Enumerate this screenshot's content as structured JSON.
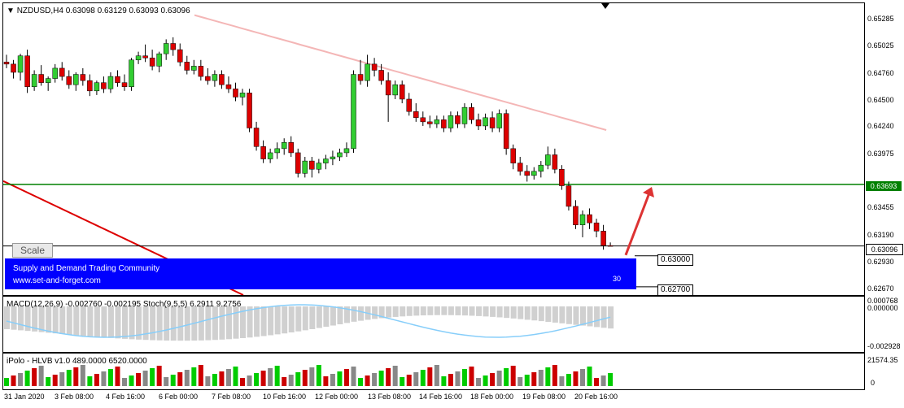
{
  "header": {
    "symbol": "NZDUSD,H4",
    "ohlc": "0.63098 0.63129 0.63093 0.63096"
  },
  "scale_button": "Scale",
  "banner": {
    "line1": "Supply and Demand Trading Community",
    "line2": "www.set-and-forget.com",
    "number": "30",
    "color": "#0000ff"
  },
  "price_axis": {
    "ticks": [
      "0.65285",
      "0.65025",
      "0.64760",
      "0.64500",
      "0.64240",
      "0.63975",
      "0.63455",
      "0.63190",
      "0.62930",
      "0.62670"
    ],
    "current_price": "0.63096",
    "level_price": "0.63693"
  },
  "boxes": {
    "upper": "0.63000",
    "lower": "0.62700"
  },
  "macd": {
    "label": "MACD(12,26,9) -0.002760 -0.002195  Stoch(9,5,5) 6.2911 9.2756",
    "ticks": [
      "0.000768",
      "0.000000",
      "-0.002928"
    ]
  },
  "volume": {
    "label": "iPolo - HLVB v1.0 489.0000 6520.0000",
    "ticks": [
      "21574.35",
      "0"
    ]
  },
  "time_axis": [
    "31 Jan 2020",
    "3 Feb 08:00",
    "4 Feb 16:00",
    "6 Feb 00:00",
    "7 Feb 08:00",
    "10 Feb 16:00",
    "12 Feb 00:00",
    "13 Feb 08:00",
    "14 Feb 16:00",
    "18 Feb 00:00",
    "19 Feb 08:00",
    "20 Feb 16:00"
  ],
  "colors": {
    "bull": "#32cd32",
    "bear": "#dd0000",
    "ma": "#f4b6b6",
    "trend": "#dd0000",
    "level": "#008000",
    "arrow": "#dd3333",
    "macd_hist": "#d0d0d0",
    "stoch": "#87cefa"
  },
  "chart_data": {
    "type": "candlestick",
    "y_range": [
      0.6262,
      0.6545
    ],
    "level": 0.63693,
    "candles": [
      [
        0.6488,
        0.6495,
        0.6482,
        0.6486
      ],
      [
        0.6486,
        0.649,
        0.6472,
        0.6478
      ],
      [
        0.6478,
        0.6496,
        0.647,
        0.6494
      ],
      [
        0.6494,
        0.65,
        0.6458,
        0.6464
      ],
      [
        0.6464,
        0.648,
        0.646,
        0.6476
      ],
      [
        0.6476,
        0.6485,
        0.6465,
        0.6468
      ],
      [
        0.6468,
        0.6474,
        0.646,
        0.6472
      ],
      [
        0.6472,
        0.6486,
        0.6468,
        0.6482
      ],
      [
        0.6482,
        0.6488,
        0.647,
        0.6474
      ],
      [
        0.6474,
        0.648,
        0.6462,
        0.6466
      ],
      [
        0.6466,
        0.6478,
        0.646,
        0.6476
      ],
      [
        0.6476,
        0.6482,
        0.6465,
        0.647
      ],
      [
        0.647,
        0.6476,
        0.6455,
        0.646
      ],
      [
        0.646,
        0.647,
        0.6456,
        0.6468
      ],
      [
        0.6468,
        0.6474,
        0.6458,
        0.6462
      ],
      [
        0.6462,
        0.6478,
        0.6458,
        0.6474
      ],
      [
        0.6474,
        0.648,
        0.6464,
        0.6468
      ],
      [
        0.6468,
        0.6476,
        0.646,
        0.6464
      ],
      [
        0.6464,
        0.6492,
        0.646,
        0.649
      ],
      [
        0.649,
        0.6498,
        0.6486,
        0.6494
      ],
      [
        0.6494,
        0.6505,
        0.6488,
        0.6492
      ],
      [
        0.6492,
        0.65,
        0.648,
        0.6484
      ],
      [
        0.6484,
        0.6498,
        0.6478,
        0.6496
      ],
      [
        0.6496,
        0.651,
        0.649,
        0.6506
      ],
      [
        0.6506,
        0.6512,
        0.6494,
        0.65
      ],
      [
        0.65,
        0.6506,
        0.6484,
        0.6488
      ],
      [
        0.6488,
        0.6494,
        0.6476,
        0.648
      ],
      [
        0.648,
        0.649,
        0.6476,
        0.6484
      ],
      [
        0.6484,
        0.649,
        0.647,
        0.6474
      ],
      [
        0.6474,
        0.6482,
        0.6466,
        0.647
      ],
      [
        0.647,
        0.648,
        0.6464,
        0.6476
      ],
      [
        0.6476,
        0.648,
        0.6462,
        0.6466
      ],
      [
        0.6466,
        0.6474,
        0.6458,
        0.6462
      ],
      [
        0.6462,
        0.6468,
        0.645,
        0.6454
      ],
      [
        0.6454,
        0.6462,
        0.6446,
        0.6458
      ],
      [
        0.6458,
        0.6462,
        0.642,
        0.6424
      ],
      [
        0.6424,
        0.643,
        0.6402,
        0.6406
      ],
      [
        0.6406,
        0.6412,
        0.639,
        0.6394
      ],
      [
        0.6394,
        0.6404,
        0.639,
        0.64
      ],
      [
        0.64,
        0.641,
        0.6394,
        0.6404
      ],
      [
        0.6404,
        0.6414,
        0.6398,
        0.641
      ],
      [
        0.641,
        0.6416,
        0.6396,
        0.64
      ],
      [
        0.64,
        0.6404,
        0.6376,
        0.638
      ],
      [
        0.638,
        0.6396,
        0.6376,
        0.6392
      ],
      [
        0.6392,
        0.6396,
        0.6376,
        0.6384
      ],
      [
        0.6384,
        0.6394,
        0.638,
        0.639
      ],
      [
        0.639,
        0.6398,
        0.6384,
        0.6394
      ],
      [
        0.6394,
        0.6402,
        0.6388,
        0.6396
      ],
      [
        0.6396,
        0.6404,
        0.6392,
        0.64
      ],
      [
        0.64,
        0.641,
        0.6396,
        0.6404
      ],
      [
        0.6404,
        0.648,
        0.64,
        0.6476
      ],
      [
        0.6476,
        0.649,
        0.6466,
        0.647
      ],
      [
        0.647,
        0.6495,
        0.6464,
        0.6486
      ],
      [
        0.6486,
        0.6492,
        0.6474,
        0.648
      ],
      [
        0.648,
        0.6486,
        0.6466,
        0.647
      ],
      [
        0.647,
        0.6478,
        0.643,
        0.6456
      ],
      [
        0.6456,
        0.647,
        0.6452,
        0.6466
      ],
      [
        0.6466,
        0.647,
        0.6448,
        0.6452
      ],
      [
        0.6452,
        0.6458,
        0.6436,
        0.644
      ],
      [
        0.644,
        0.6448,
        0.643,
        0.6434
      ],
      [
        0.6434,
        0.644,
        0.6426,
        0.643
      ],
      [
        0.643,
        0.6436,
        0.6424,
        0.6428
      ],
      [
        0.6428,
        0.6436,
        0.6424,
        0.6432
      ],
      [
        0.6432,
        0.6436,
        0.642,
        0.6424
      ],
      [
        0.6424,
        0.644,
        0.642,
        0.6436
      ],
      [
        0.6436,
        0.644,
        0.6424,
        0.6428
      ],
      [
        0.6428,
        0.6448,
        0.6424,
        0.6444
      ],
      [
        0.6444,
        0.6448,
        0.6428,
        0.6432
      ],
      [
        0.6432,
        0.6438,
        0.6422,
        0.6426
      ],
      [
        0.6426,
        0.6438,
        0.6422,
        0.6434
      ],
      [
        0.6434,
        0.644,
        0.642,
        0.6424
      ],
      [
        0.6424,
        0.6442,
        0.642,
        0.6438
      ],
      [
        0.6438,
        0.6442,
        0.6398,
        0.6404
      ],
      [
        0.6404,
        0.6408,
        0.6384,
        0.639
      ],
      [
        0.639,
        0.6396,
        0.6378,
        0.6382
      ],
      [
        0.6382,
        0.6388,
        0.6372,
        0.6378
      ],
      [
        0.6378,
        0.6386,
        0.6374,
        0.6382
      ],
      [
        0.6382,
        0.6392,
        0.6376,
        0.6388
      ],
      [
        0.6388,
        0.6406,
        0.6384,
        0.6398
      ],
      [
        0.6398,
        0.6404,
        0.638,
        0.6384
      ],
      [
        0.6384,
        0.6388,
        0.6364,
        0.6368
      ],
      [
        0.6368,
        0.6372,
        0.6344,
        0.6348
      ],
      [
        0.6348,
        0.6354,
        0.6326,
        0.633
      ],
      [
        0.633,
        0.6344,
        0.6318,
        0.634
      ],
      [
        0.634,
        0.6346,
        0.6326,
        0.6332
      ],
      [
        0.6332,
        0.6336,
        0.6318,
        0.6324
      ],
      [
        0.6324,
        0.633,
        0.6306,
        0.631
      ],
      [
        0.631,
        0.6313,
        0.63093,
        0.63096
      ]
    ]
  }
}
